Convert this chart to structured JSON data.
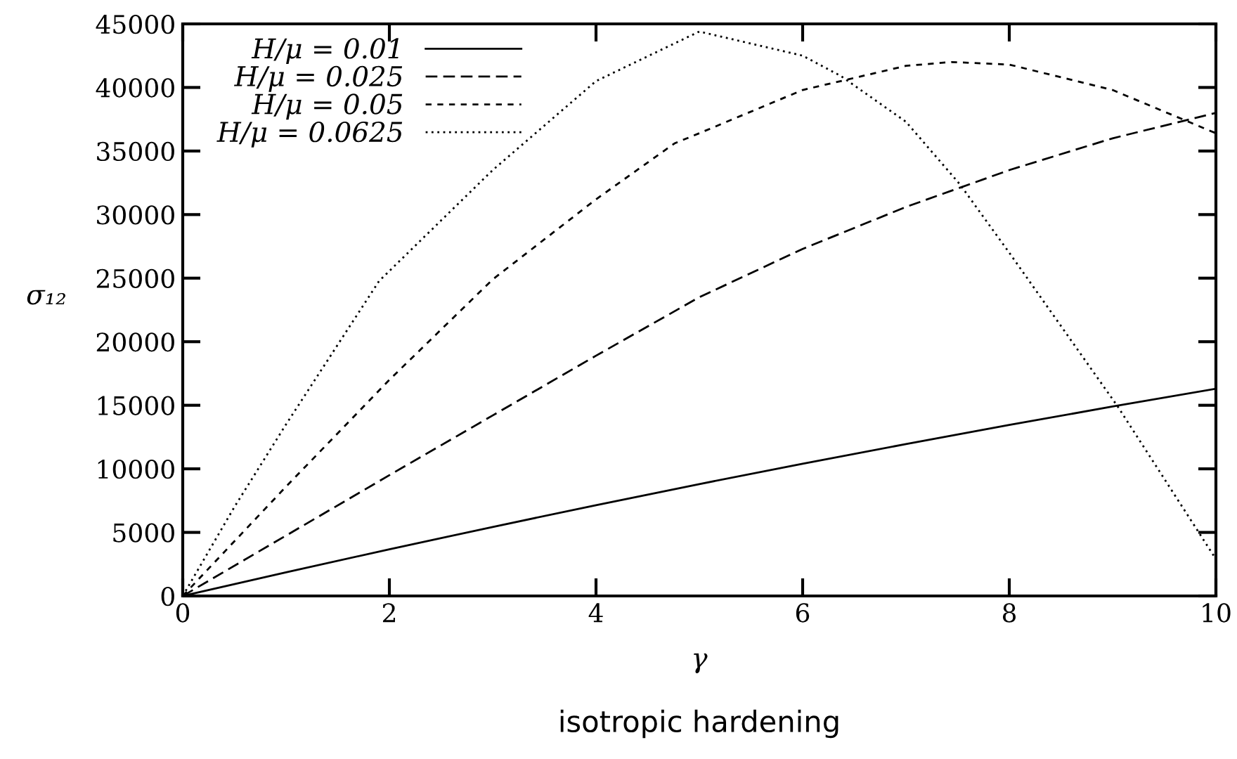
{
  "chart_data": {
    "type": "line",
    "title": "isotropic hardening",
    "xlabel": "γ",
    "ylabel": "σ₁₂",
    "xlim": [
      0,
      10
    ],
    "ylim": [
      0,
      45000
    ],
    "xticks": [
      0,
      2,
      4,
      6,
      8,
      10
    ],
    "yticks": [
      0,
      5000,
      10000,
      15000,
      20000,
      25000,
      30000,
      35000,
      40000,
      45000
    ],
    "grid": false,
    "legend": "top left",
    "marker": "none",
    "series": [
      {
        "name": "H/μ = 0.01",
        "color": "#000000",
        "line_style": "solid",
        "x": [
          0,
          1,
          2,
          3,
          4,
          5,
          6,
          7,
          8,
          9,
          10
        ],
        "values": [
          0,
          1860,
          3670,
          5430,
          7140,
          8800,
          10400,
          11950,
          13450,
          14900,
          16300
        ]
      },
      {
        "name": "H/μ = 0.025",
        "color": "#000000",
        "line_style": "dashed",
        "x": [
          0,
          1,
          2,
          3,
          4,
          5,
          6,
          7,
          8,
          9,
          10
        ],
        "values": [
          0,
          4750,
          9500,
          14200,
          18900,
          23500,
          27300,
          30600,
          33500,
          36000,
          38000
        ]
      },
      {
        "name": "H/μ = 0.05",
        "color": "#000000",
        "line_style": "dashed",
        "x": [
          0,
          1,
          2,
          3,
          4,
          4.76,
          5,
          6,
          7,
          7.44,
          8,
          9,
          10
        ],
        "values": [
          0,
          8600,
          17000,
          24900,
          31200,
          35600,
          36400,
          39800,
          41700,
          42000,
          41800,
          39800,
          36400
        ]
      },
      {
        "name": "H/μ = 0.0625",
        "color": "#000000",
        "line_style": "dotted",
        "x": [
          0,
          0.5,
          1,
          1.9,
          3,
          4,
          5,
          6,
          6.37,
          7,
          7.52,
          8,
          9.05,
          10
        ],
        "values": [
          0,
          7000,
          13500,
          24770,
          33500,
          40500,
          44400,
          42500,
          40900,
          37300,
          32400,
          27000,
          14900,
          2900
        ]
      }
    ]
  }
}
